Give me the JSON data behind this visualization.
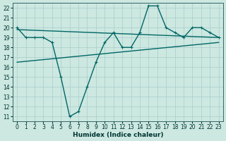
{
  "title": "",
  "xlabel": "Humidex (Indice chaleur)",
  "bg_color": "#cce8e0",
  "grid_color": "#aacccc",
  "line_color": "#006666",
  "xlim": [
    -0.5,
    23.5
  ],
  "ylim": [
    10.5,
    22.5
  ],
  "xticks": [
    0,
    1,
    2,
    3,
    4,
    5,
    6,
    7,
    8,
    9,
    10,
    11,
    12,
    13,
    14,
    15,
    16,
    17,
    18,
    19,
    20,
    21,
    22,
    23
  ],
  "yticks": [
    11,
    12,
    13,
    14,
    15,
    16,
    17,
    18,
    19,
    20,
    21,
    22
  ],
  "curve_x": [
    0,
    1,
    2,
    3,
    4,
    5,
    6,
    7,
    8,
    9,
    10,
    11,
    12,
    13,
    14,
    15,
    16,
    17,
    18,
    19,
    20,
    21,
    22,
    23
  ],
  "curve_y": [
    20.0,
    19.0,
    19.0,
    19.0,
    18.5,
    15.0,
    11.0,
    11.5,
    14.0,
    16.5,
    18.5,
    19.5,
    18.0,
    18.0,
    19.5,
    22.2,
    22.2,
    20.0,
    19.5,
    19.0,
    20.0,
    20.0,
    19.5,
    19.0
  ],
  "line2_x": [
    0,
    23
  ],
  "line2_y": [
    19.8,
    19.0
  ],
  "line3_x": [
    0,
    23
  ],
  "line3_y": [
    16.5,
    18.5
  ],
  "marker_size": 3.0,
  "linewidth": 1.0
}
